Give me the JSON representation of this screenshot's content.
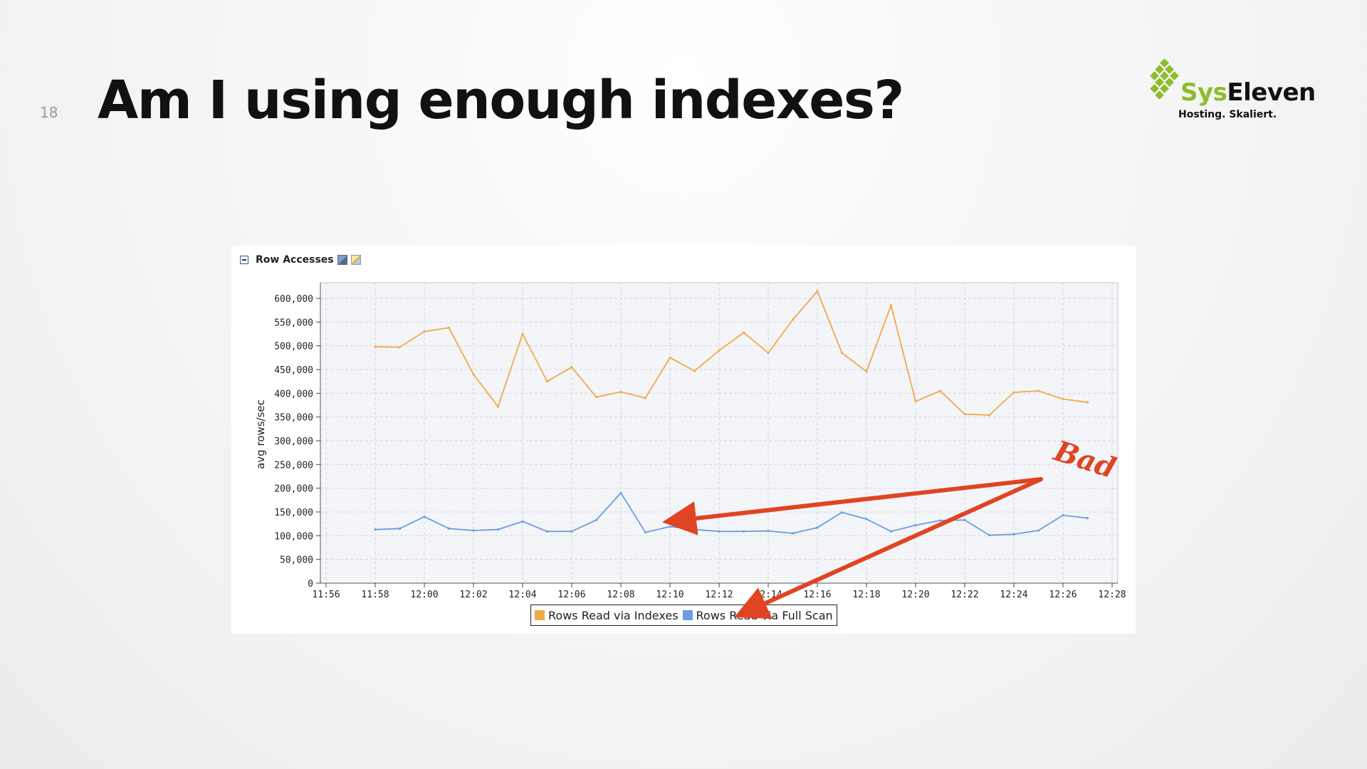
{
  "slide": {
    "number": "18",
    "title": "Am I using enough indexes?"
  },
  "logo": {
    "name_part1": "Sys",
    "name_part2": "Eleven",
    "tagline": "Hosting. Skaliert.",
    "accent_color": "#8cbd2c"
  },
  "panel": {
    "title": "Row Accesses",
    "icons": [
      "collapse-icon",
      "people-icon",
      "chart-icon"
    ]
  },
  "chart_data": {
    "type": "line",
    "title": "",
    "xlabel": "",
    "ylabel": "avg rows/sec",
    "xlim": [
      "11:56",
      "12:28"
    ],
    "ylim": [
      0,
      600000
    ],
    "grid": true,
    "legend_position": "bottom-center",
    "x_ticks": [
      "11:56",
      "11:58",
      "12:00",
      "12:02",
      "12:04",
      "12:06",
      "12:08",
      "12:10",
      "12:12",
      "12:14",
      "12:16",
      "12:18",
      "12:20",
      "12:22",
      "12:24",
      "12:26",
      "12:28"
    ],
    "y_ticks": [
      "0",
      "50,000",
      "100,000",
      "150,000",
      "200,000",
      "250,000",
      "300,000",
      "350,000",
      "400,000",
      "450,000",
      "500,000",
      "550,000",
      "600,000"
    ],
    "x": [
      "11:58",
      "11:59",
      "12:00",
      "12:01",
      "12:02",
      "12:03",
      "12:04",
      "12:05",
      "12:06",
      "12:07",
      "12:08",
      "12:09",
      "12:10",
      "12:11",
      "12:12",
      "12:13",
      "12:14",
      "12:15",
      "12:16",
      "12:17",
      "12:18",
      "12:19",
      "12:20",
      "12:21",
      "12:22",
      "12:23",
      "12:24",
      "12:25",
      "12:26",
      "12:27"
    ],
    "series": [
      {
        "name": "Rows Read via Indexes",
        "color": "#f0a949",
        "values": [
          498000,
          497000,
          530000,
          538000,
          440000,
          372000,
          525000,
          425000,
          455000,
          392000,
          403000,
          390000,
          475000,
          447000,
          490000,
          528000,
          485000,
          555000,
          615000,
          485000,
          446000,
          585000,
          383000,
          405000,
          356000,
          354000,
          402000,
          405000,
          388000,
          381000
        ]
      },
      {
        "name": "Rows Read via Full Scan",
        "color": "#6b9de1",
        "values": [
          113000,
          115000,
          140000,
          115000,
          111000,
          113000,
          130000,
          109000,
          109000,
          133000,
          190000,
          107000,
          119000,
          113000,
          109000,
          109000,
          110000,
          105000,
          117000,
          149000,
          135000,
          109000,
          122000,
          132000,
          133000,
          101000,
          103000,
          111000,
          143000,
          137000
        ]
      }
    ]
  },
  "annotation": {
    "label": "Bad",
    "color": "#e04423"
  }
}
